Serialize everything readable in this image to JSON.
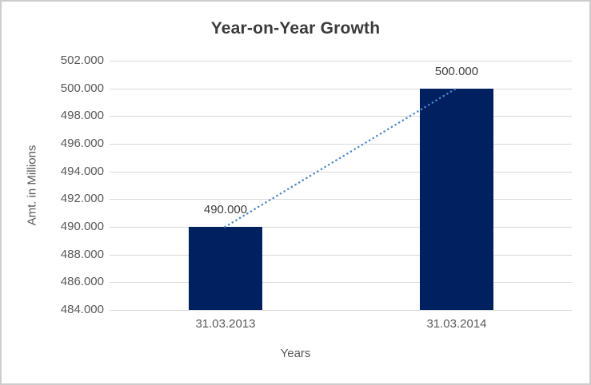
{
  "window": {
    "background": "#ffffff",
    "border_color": "#cdcdcd"
  },
  "chart_data": {
    "type": "bar",
    "title": "Year-on-Year Growth",
    "xlabel": "Years",
    "ylabel": "Amt. in Millions",
    "categories": [
      "31.03.2013",
      "31.03.2014"
    ],
    "series": [
      {
        "name": "Amount",
        "values": [
          490000,
          500000
        ],
        "data_labels": [
          "490.000",
          "500.000"
        ],
        "color": "#002060"
      }
    ],
    "trendline": {
      "style": "dotted",
      "color": "#4e87cf",
      "from": {
        "category": "31.03.2013",
        "value": 490000
      },
      "to": {
        "category": "31.03.2014",
        "value": 500000
      }
    },
    "ylim": [
      484000,
      502000
    ],
    "ytick_step": 2000,
    "ytick_values": [
      502000,
      500000,
      498000,
      496000,
      494000,
      492000,
      490000,
      488000,
      486000,
      484000
    ],
    "ytick_labels": [
      "502.000",
      "500.000",
      "498.000",
      "496.000",
      "494.000",
      "492.000",
      "490.000",
      "488.000",
      "486.000",
      "484.000"
    ],
    "grid": true,
    "legend": "none",
    "colors": {
      "bar": "#002060",
      "trendline": "#4e87cf",
      "gridline": "#d9d9d9",
      "axis_line": "#d9d9d9",
      "tick_label": "#595959",
      "axis_title": "#595959",
      "title": "#3b3b3b",
      "data_label": "#404040"
    }
  }
}
